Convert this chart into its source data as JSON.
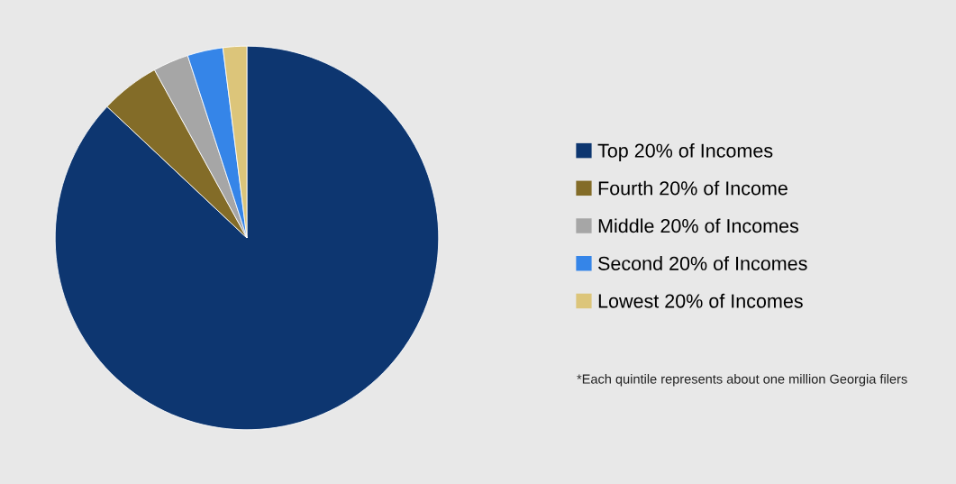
{
  "chart_data": {
    "type": "pie",
    "categories": [
      "Top 20% of Incomes",
      "Fourth 20% of Income",
      "Middle 20% of Incomes",
      "Second 20% of Incomes",
      "Lowest 20% of Incomes"
    ],
    "values": [
      87,
      5,
      3,
      3,
      2
    ],
    "colors": [
      "#0d3670",
      "#836c28",
      "#a6a6a6",
      "#3585e8",
      "#dcc57a"
    ],
    "legend": "right",
    "annotations": [
      "*Each quintile represents about one million Georgia filers"
    ]
  }
}
